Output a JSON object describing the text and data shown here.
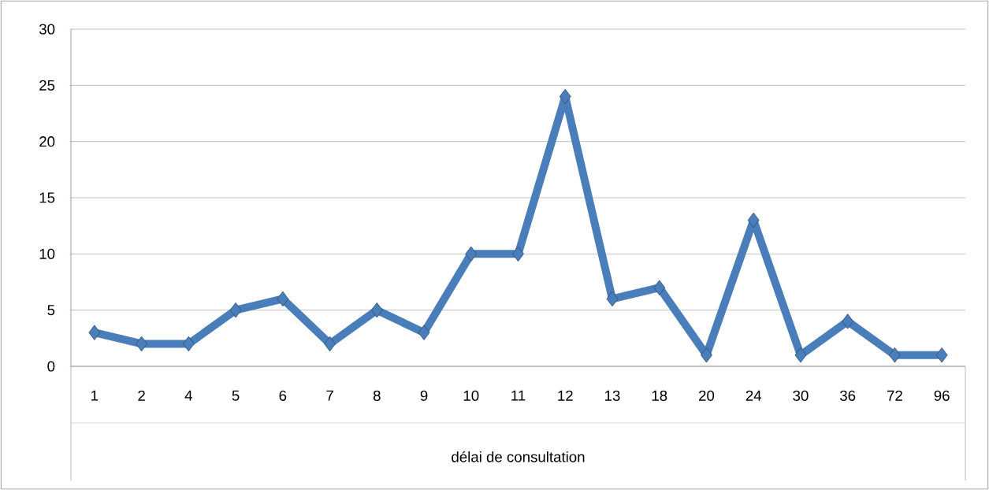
{
  "chart_data": {
    "type": "line",
    "xlabel": "délai de consultation",
    "categories": [
      "1",
      "2",
      "4",
      "5",
      "6",
      "7",
      "8",
      "9",
      "10",
      "11",
      "12",
      "13",
      "18",
      "20",
      "24",
      "30",
      "36",
      "72",
      "96"
    ],
    "series": [
      {
        "color": "#4a7ebb",
        "values": [
          3,
          2,
          2,
          5,
          6,
          2,
          5,
          3,
          10,
          10,
          24,
          6,
          7,
          1,
          13,
          1,
          4,
          1,
          1
        ]
      }
    ],
    "ylim": [
      0,
      30
    ],
    "yticks": [
      0,
      5,
      10,
      15,
      20,
      25,
      30
    ],
    "grid": "y",
    "marker": "diamond",
    "line_style": "solid"
  }
}
